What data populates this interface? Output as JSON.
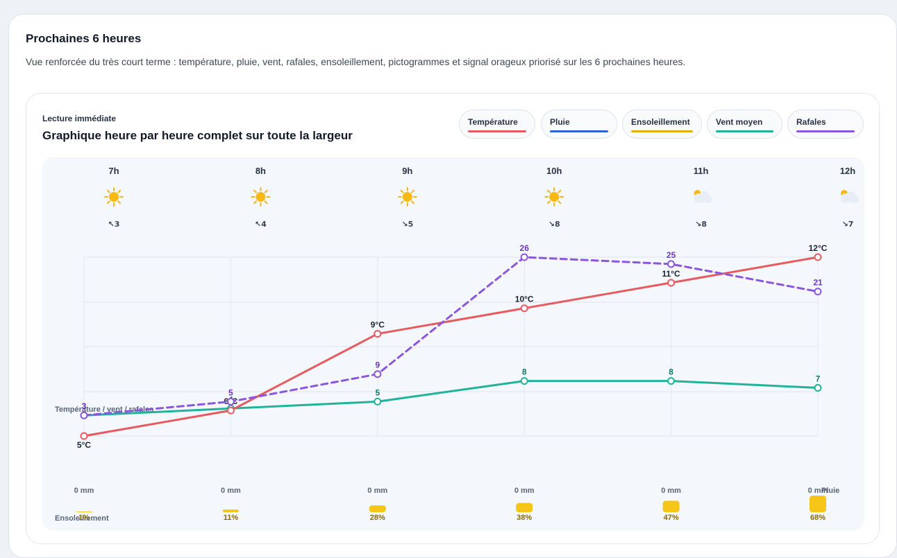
{
  "section": {
    "title": "Prochaines 6 heures",
    "description": "Vue renforcée du très court terme : température, pluie, vent, rafales, ensoleillement, pictogrammes et signal orageux priorisé sur les 6 prochaines heures."
  },
  "card": {
    "kicker": "Lecture immédiate",
    "heading": "Graphique heure par heure complet sur toute la largeur"
  },
  "legend": [
    {
      "label": "Température",
      "color": "#e85a5e"
    },
    {
      "label": "Pluie",
      "color": "#2f62d8"
    },
    {
      "label": "Ensoleillement",
      "color": "#e2b10c"
    },
    {
      "label": "Vent moyen",
      "color": "#1fb39b"
    },
    {
      "label": "Rafales",
      "color": "#8b55e0"
    }
  ],
  "chart_data": {
    "type": "line",
    "x": [
      "7h",
      "8h",
      "9h",
      "10h",
      "11h",
      "12h"
    ],
    "icons": [
      "sun-icon",
      "sun-icon",
      "sun-icon",
      "sun-icon",
      "partly-cloudy-icon",
      "partly-cloudy-icon"
    ],
    "wind_dir": [
      "↖",
      "↖",
      "↘",
      "↘",
      "↘",
      "↘"
    ],
    "wind_dir_values": [
      3,
      4,
      5,
      8,
      8,
      7
    ],
    "axis_label_left": "Température / vent / rafales",
    "axis_label_rain": "Pluie",
    "axis_label_sun": "Ensoleillement",
    "series": [
      {
        "name": "Température",
        "key": "temp",
        "values": [
          5,
          6,
          9,
          10,
          11,
          12
        ],
        "unit": "°C",
        "color": "#e85a5e",
        "dashed": false
      },
      {
        "name": "Vent moyen",
        "key": "wind",
        "values": [
          3,
          4,
          5,
          8,
          8,
          7
        ],
        "unit": "",
        "color": "#1fb39b",
        "dashed": false
      },
      {
        "name": "Rafales",
        "key": "gust",
        "values": [
          3,
          5,
          9,
          26,
          25,
          21
        ],
        "unit": "",
        "color": "#8b55e0",
        "dashed": true
      }
    ],
    "rain_mm": [
      "0 mm",
      "0 mm",
      "0 mm",
      "0 mm",
      "0 mm",
      "0 mm"
    ],
    "sunshine_pct": [
      1,
      11,
      28,
      38,
      47,
      68
    ],
    "sunshine_labels": [
      "1%",
      "11%",
      "28%",
      "38%",
      "47%",
      "68%"
    ],
    "sun_color": "#f5c518"
  }
}
